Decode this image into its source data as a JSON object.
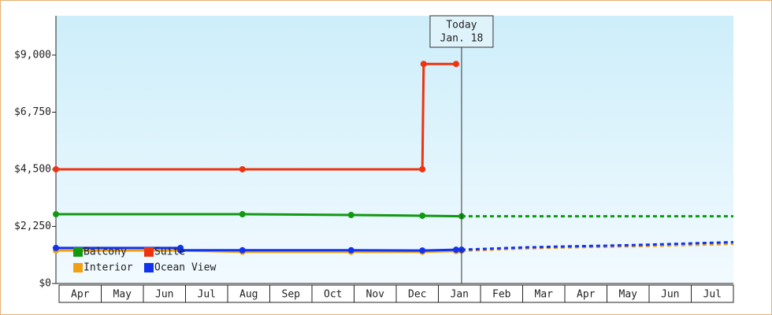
{
  "chart_data": {
    "type": "line",
    "categories": [
      "Apr",
      "May",
      "Jun",
      "Jul",
      "Aug",
      "Sep",
      "Oct",
      "Nov",
      "Dec",
      "Jan",
      "Feb",
      "Mar",
      "Apr",
      "May",
      "Jun",
      "Jul"
    ],
    "xlim": [
      -0.075,
      16
    ],
    "ylim": [
      0,
      10550
    ],
    "yticks": [
      {
        "value": 0,
        "label": "$0"
      },
      {
        "value": 2250,
        "label": "$2,250"
      },
      {
        "value": 4500,
        "label": "$4,500"
      },
      {
        "value": 6750,
        "label": "$6,750"
      },
      {
        "value": 9000,
        "label": "$9,000"
      }
    ],
    "legend": "lower left",
    "today": {
      "x": 9.55,
      "label": "Today",
      "date": "Jan. 18"
    },
    "series": [
      {
        "name": "Balcony",
        "color": "#119911",
        "x": [
          -0.075,
          4.35,
          6.93,
          8.62,
          9.55
        ],
        "values": [
          2730,
          2730,
          2700,
          2670,
          2650
        ],
        "forecast": {
          "x": [
            9.55,
            16
          ],
          "values": [
            2650,
            2650
          ]
        }
      },
      {
        "name": "Suite",
        "color": "#ee3311",
        "x": [
          -0.075,
          4.35,
          8.62,
          8.65,
          9.42
        ],
        "values": [
          4500,
          4500,
          4500,
          8650,
          8650
        ],
        "forecast": null
      },
      {
        "name": "Interior",
        "color": "#f0a010",
        "x": [
          -0.075,
          2.88,
          4.35,
          6.93,
          8.62,
          9.42,
          9.55
        ],
        "values": [
          1300,
          1300,
          1250,
          1250,
          1250,
          1280,
          1290
        ],
        "forecast": {
          "x": [
            9.55,
            11,
            12,
            13,
            14,
            15,
            16
          ],
          "values": [
            1290,
            1380,
            1420,
            1450,
            1480,
            1520,
            1560
          ]
        }
      },
      {
        "name": "Ocean View",
        "color": "#1133ee",
        "x": [
          -0.075,
          2.88,
          2.88,
          4.35,
          6.93,
          8.62,
          9.42,
          9.55
        ],
        "values": [
          1400,
          1400,
          1310,
          1310,
          1310,
          1300,
          1330,
          1330
        ],
        "forecast": {
          "x": [
            9.55,
            11,
            12,
            13,
            14,
            15,
            16
          ],
          "values": [
            1330,
            1420,
            1460,
            1490,
            1530,
            1580,
            1630
          ]
        }
      }
    ]
  }
}
